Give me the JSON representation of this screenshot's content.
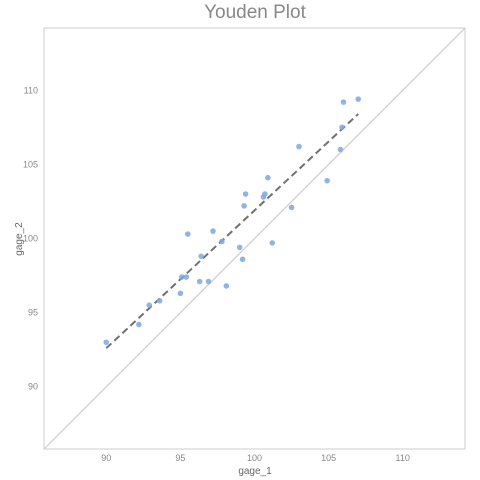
{
  "chart_data": {
    "type": "scatter",
    "title": "Youden Plot",
    "xlabel": "gage_1",
    "ylabel": "gage_2",
    "xlim": [
      85.8,
      114.2
    ],
    "ylim": [
      85.8,
      114.2
    ],
    "x_ticks": [
      90,
      95,
      100,
      105,
      110
    ],
    "y_ticks": [
      90,
      95,
      100,
      105,
      110
    ],
    "grid": false,
    "points": [
      {
        "x": 90.0,
        "y": 93.0
      },
      {
        "x": 92.2,
        "y": 94.2
      },
      {
        "x": 92.9,
        "y": 95.5
      },
      {
        "x": 93.6,
        "y": 95.8
      },
      {
        "x": 95.0,
        "y": 96.3
      },
      {
        "x": 95.1,
        "y": 97.4
      },
      {
        "x": 95.4,
        "y": 97.4
      },
      {
        "x": 95.5,
        "y": 100.3
      },
      {
        "x": 96.3,
        "y": 97.1
      },
      {
        "x": 96.4,
        "y": 98.8
      },
      {
        "x": 96.9,
        "y": 97.1
      },
      {
        "x": 97.2,
        "y": 100.5
      },
      {
        "x": 97.8,
        "y": 99.8
      },
      {
        "x": 98.1,
        "y": 96.8
      },
      {
        "x": 99.0,
        "y": 99.4
      },
      {
        "x": 99.2,
        "y": 98.6
      },
      {
        "x": 99.3,
        "y": 102.2
      },
      {
        "x": 99.4,
        "y": 103.0
      },
      {
        "x": 100.6,
        "y": 102.8
      },
      {
        "x": 100.7,
        "y": 103.0
      },
      {
        "x": 100.9,
        "y": 104.1
      },
      {
        "x": 101.2,
        "y": 99.7
      },
      {
        "x": 102.5,
        "y": 102.1
      },
      {
        "x": 103.0,
        "y": 106.2
      },
      {
        "x": 104.9,
        "y": 103.9
      },
      {
        "x": 105.8,
        "y": 106.0
      },
      {
        "x": 105.9,
        "y": 107.5
      },
      {
        "x": 106.0,
        "y": 109.2
      },
      {
        "x": 107.0,
        "y": 109.4
      }
    ],
    "reference_line": {
      "name": "identity",
      "from": [
        85.8,
        85.8
      ],
      "to": [
        114.2,
        114.2
      ]
    },
    "fit_line": {
      "name": "fit",
      "style": "dashed",
      "from": [
        90.0,
        92.6
      ],
      "to": [
        107.0,
        108.4
      ]
    },
    "colors": {
      "points": "#7fa7de",
      "fit_line": "#707070",
      "identity_line": "#cccccc",
      "frame": "#cccccc",
      "title": "#888888"
    }
  }
}
